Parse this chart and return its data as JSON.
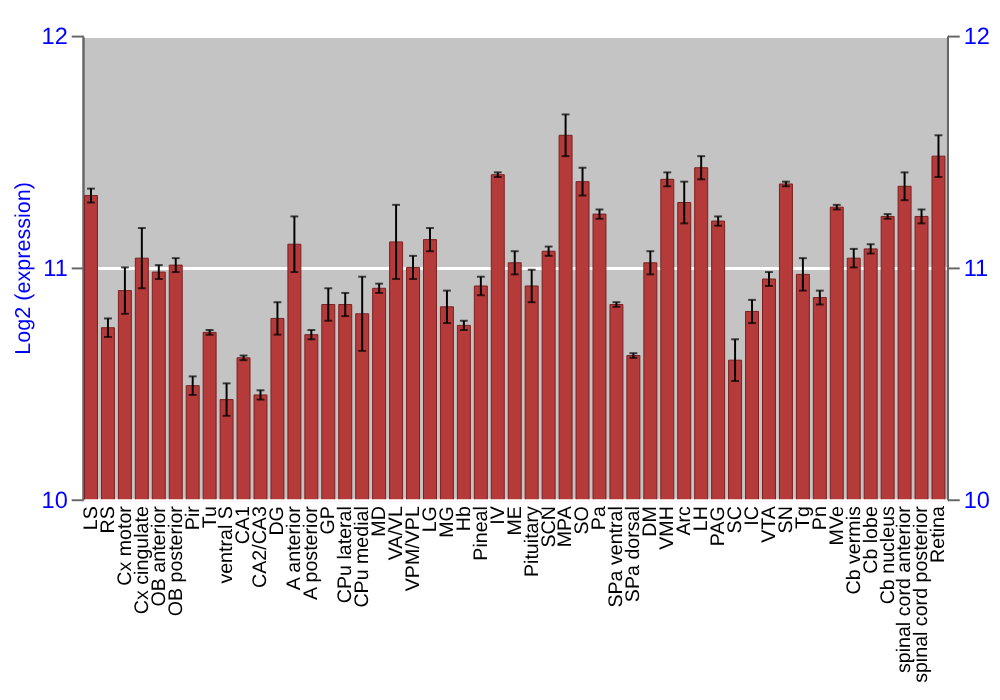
{
  "chart_data": {
    "type": "bar",
    "ylabel": "Log2 (expression)",
    "categories": [
      "LS",
      "RS",
      "Cx motor",
      "Cx cingulate",
      "OB anterior",
      "OB posterior",
      "Pir",
      "Tu",
      "ventral S",
      "CA1",
      "CA2/CA3",
      "DG",
      "A anterior",
      "A posterior",
      "GP",
      "CPu lateral",
      "CPu medial",
      "MD",
      "VA/VL",
      "VPM/VPL",
      "LG",
      "MG",
      "Hb",
      "Pineal",
      "IV",
      "ME",
      "Pituitary",
      "SCN",
      "MPA",
      "SO",
      "Pa",
      "SPa ventral",
      "SPa dorsal",
      "DM",
      "VMH",
      "Arc",
      "LH",
      "PAG",
      "SC",
      "IC",
      "VTA",
      "SN",
      "Tg",
      "Pn",
      "MVe",
      "Cb vermis",
      "Cb lobe",
      "Cb nucleus",
      "spinal cord anterior",
      "spinal cord posterior",
      "Retina"
    ],
    "values": [
      11.31,
      10.74,
      10.9,
      11.04,
      10.98,
      11.01,
      10.49,
      10.72,
      10.43,
      10.61,
      10.45,
      10.78,
      11.1,
      10.71,
      10.84,
      10.84,
      10.8,
      10.91,
      11.11,
      11.0,
      11.12,
      10.83,
      10.75,
      10.92,
      11.4,
      11.02,
      10.92,
      11.07,
      11.57,
      11.37,
      11.23,
      10.84,
      10.62,
      11.02,
      11.38,
      11.28,
      11.43,
      11.2,
      10.6,
      10.81,
      10.95,
      11.36,
      10.97,
      10.87,
      11.26,
      11.04,
      11.08,
      11.22,
      11.35,
      11.22,
      11.48
    ],
    "errors": [
      0.03,
      0.04,
      0.1,
      0.13,
      0.03,
      0.03,
      0.04,
      0.01,
      0.07,
      0.01,
      0.02,
      0.07,
      0.12,
      0.02,
      0.07,
      0.05,
      0.16,
      0.02,
      0.16,
      0.05,
      0.05,
      0.07,
      0.02,
      0.04,
      0.01,
      0.05,
      0.07,
      0.02,
      0.09,
      0.06,
      0.02,
      0.01,
      0.01,
      0.05,
      0.03,
      0.09,
      0.05,
      0.02,
      0.09,
      0.05,
      0.03,
      0.01,
      0.07,
      0.03,
      0.01,
      0.04,
      0.02,
      0.01,
      0.06,
      0.03,
      0.09
    ],
    "color": "#b53a3a",
    "ylim": [
      10,
      12
    ],
    "yticks": [
      10,
      11,
      12
    ],
    "y2lim": [
      10,
      12
    ],
    "y2ticks": [
      10,
      11,
      12
    ],
    "grid": "y"
  }
}
